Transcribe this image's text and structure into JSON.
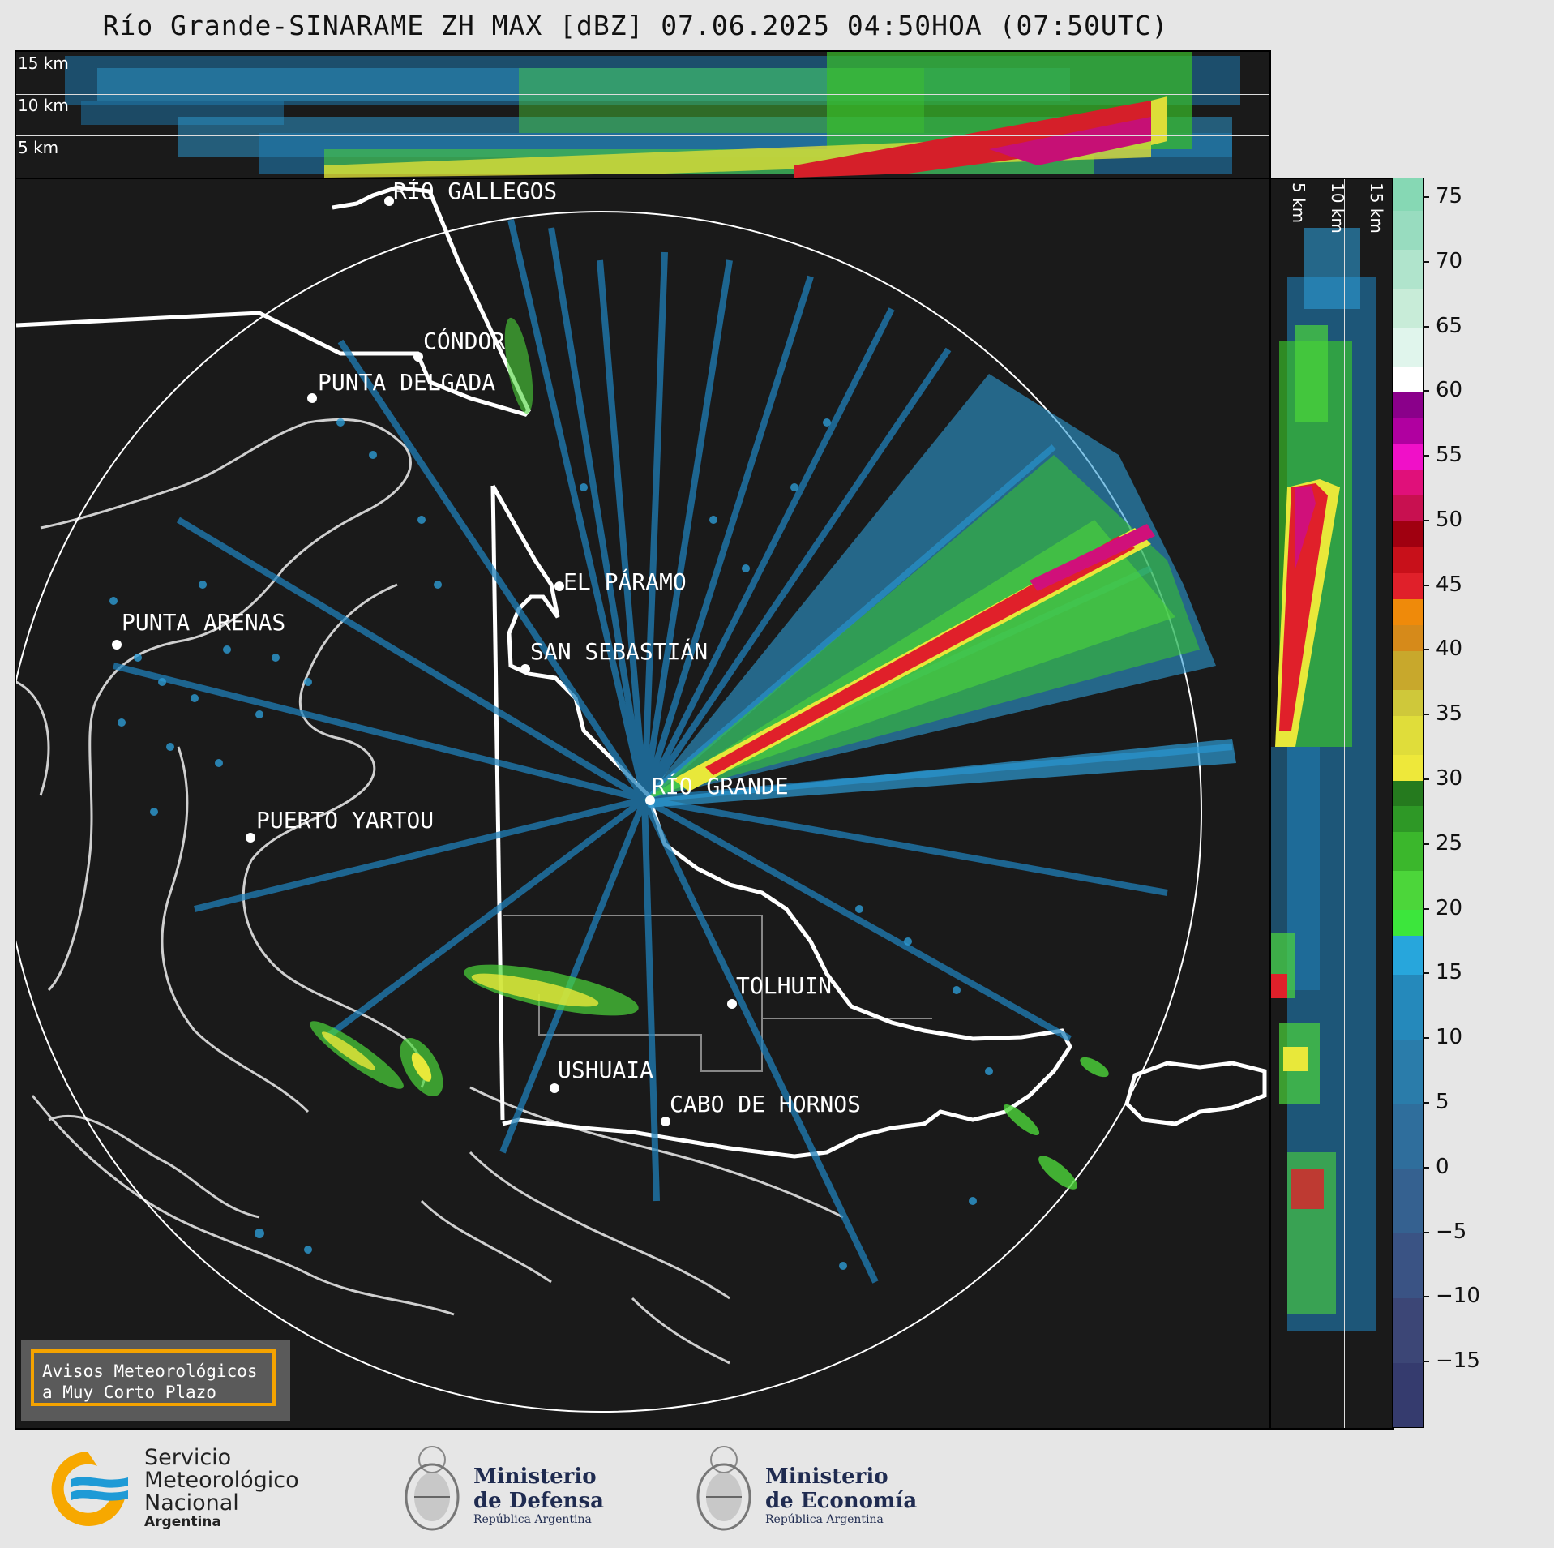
{
  "title": "Río Grande-SINARAME ZH MAX [dBZ] 07.06.2025 04:50HOA (07:50UTC)",
  "top_panel": {
    "altitude_labels": [
      "15 km",
      "10 km",
      "5 km"
    ]
  },
  "side_panel": {
    "altitude_labels": [
      "5 km",
      "10 km",
      "15 km"
    ]
  },
  "colorbar": {
    "ticks": [
      "75",
      "70",
      "65",
      "60",
      "55",
      "50",
      "45",
      "40",
      "35",
      "30",
      "25",
      "20",
      "15",
      "10",
      "5",
      "0",
      "−5",
      "−10",
      "−15"
    ],
    "min": -20,
    "max": 76.5
  },
  "cities": [
    {
      "name": "RÍO GALLEGOS",
      "key": "rio-gallegos"
    },
    {
      "name": "CÓNDOR",
      "key": "condor"
    },
    {
      "name": "PUNTA DELGADA",
      "key": "punta-delgada"
    },
    {
      "name": "EL PÁRAMO",
      "key": "el-paramo"
    },
    {
      "name": "PUNTA ARENAS",
      "key": "punta-arenas"
    },
    {
      "name": "SAN SEBASTIÁN",
      "key": "san-sebastian"
    },
    {
      "name": "RÍO GRANDE",
      "key": "rio-grande"
    },
    {
      "name": "PUERTO YARTOU",
      "key": "puerto-yartou"
    },
    {
      "name": "TOLHUIN",
      "key": "tolhuin"
    },
    {
      "name": "USHUAIA",
      "key": "ushuaia"
    },
    {
      "name": "CABO DE HORNOS",
      "key": "cabo-de-hornos"
    }
  ],
  "alert": {
    "line1": "Avisos Meteorológicos",
    "line2": "a Muy Corto Plazo"
  },
  "logos": {
    "smn_line1": "Servicio",
    "smn_line2": "Meteorológico",
    "smn_line3": "Nacional",
    "smn_line4": "Argentina",
    "defensa_line1": "Ministerio",
    "defensa_line2": "de Defensa",
    "defensa_line3": "República Argentina",
    "economia_line1": "Ministerio",
    "economia_line2": "de Economía",
    "economia_line3": "República Argentina"
  },
  "colors": {
    "background": "#1a1a1a",
    "page": "#e6e6e6",
    "alert_border": "#f5a300",
    "smn_blue": "#1e9ad6",
    "smn_yellow": "#f7a800"
  }
}
